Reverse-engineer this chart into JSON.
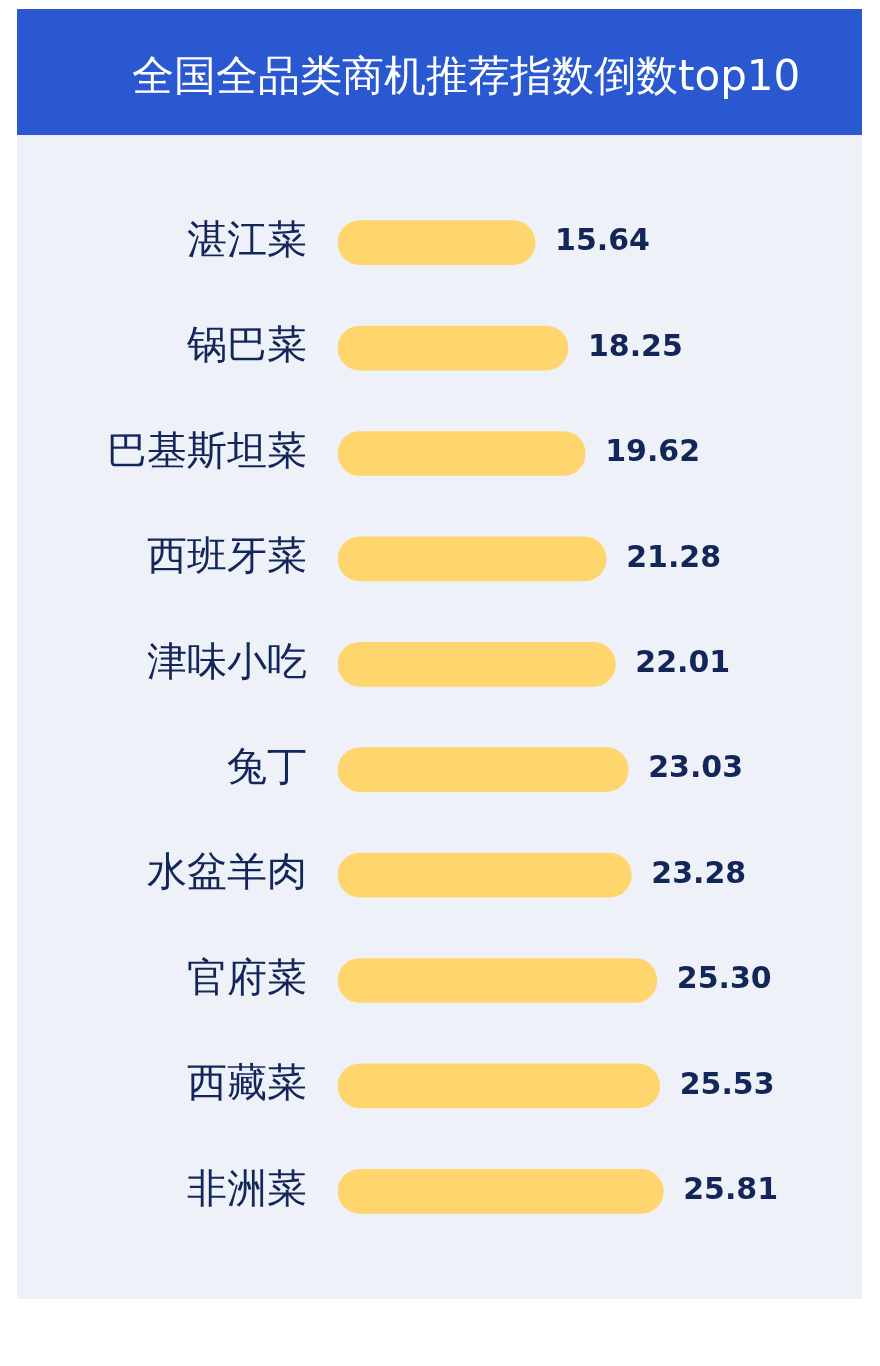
{
  "chart_data": {
    "type": "bar",
    "orientation": "horizontal",
    "title": "全国全品类商机推荐指数倒数top10",
    "categories": [
      "湛江菜",
      "锅巴菜",
      "巴基斯坦菜",
      "西班牙菜",
      "津味小吃",
      "兔丁",
      "水盆羊肉",
      "官府菜",
      "西藏菜",
      "非洲菜"
    ],
    "values": [
      15.64,
      18.25,
      19.62,
      21.28,
      22.01,
      23.03,
      23.28,
      25.3,
      25.53,
      25.81
    ],
    "value_labels": [
      "15.64",
      "18.25",
      "19.62",
      "21.28",
      "22.01",
      "23.03",
      "23.28",
      "25.30",
      "25.53",
      "25.81"
    ],
    "color": "#ffd66e",
    "tick_labels": "y"
  }
}
